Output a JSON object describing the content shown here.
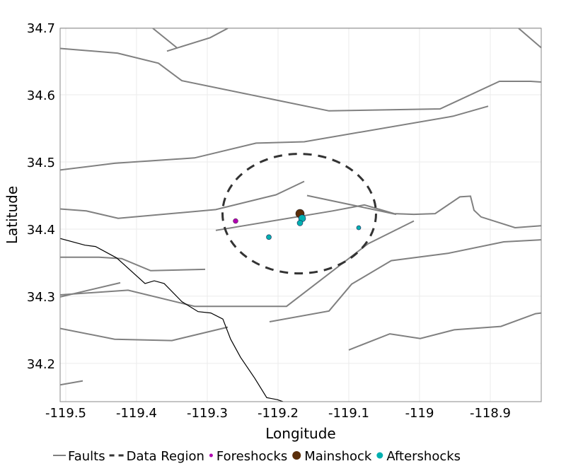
{
  "chart_data": {
    "type": "scatter",
    "title": "",
    "xlabel": "Longitude",
    "ylabel": "Latitude",
    "xlim": [
      -119.508,
      -118.828
    ],
    "ylim": [
      34.143,
      34.699
    ],
    "grid": true,
    "x_ticks": [
      -119.5,
      -119.4,
      -119.3,
      -119.2,
      -119.1,
      -119,
      -118.9
    ],
    "x_tick_labels": [
      "-119.5",
      "-119.4",
      "-119.3",
      "-119.2",
      "-119.1",
      "-119",
      "-118.9"
    ],
    "y_ticks": [
      34.2,
      34.3,
      34.4,
      34.5,
      34.6,
      34.7
    ],
    "y_tick_labels": [
      "34.2",
      "34.3",
      "34.4",
      "34.5",
      "34.6",
      "34.7"
    ],
    "legend_placement": "bottom",
    "legend": [
      {
        "label": "Faults",
        "kind": "line",
        "color": "#808080"
      },
      {
        "label": "Data Region",
        "kind": "dash",
        "color": "#333333"
      },
      {
        "label": "Foreshocks",
        "kind": "dot",
        "color": "#b000b0"
      },
      {
        "label": "Mainshock",
        "kind": "dot",
        "color": "#5a2e0a"
      },
      {
        "label": "Aftershocks",
        "kind": "dot",
        "color": "#00b0b0"
      }
    ],
    "data_region": {
      "center": [
        -119.17,
        34.423
      ],
      "radius_lon": 0.1085,
      "radius_lat": 0.089,
      "color": "#333333"
    },
    "foreshocks": {
      "color": "#b000b0",
      "points": [
        [
          -119.26,
          34.412
        ]
      ]
    },
    "mainshock": {
      "color": "#5a2e0a",
      "points": [
        [
          -119.169,
          34.423
        ]
      ]
    },
    "aftershocks": {
      "color": "#00b0b0",
      "points": [
        [
          -119.166,
          34.416
        ],
        [
          -119.169,
          34.409
        ],
        [
          -119.213,
          34.388
        ],
        [
          -119.086,
          34.402
        ]
      ]
    },
    "coastline": {
      "color": "#000000",
      "points": [
        [
          -119.508,
          34.386
        ],
        [
          -119.473,
          34.376
        ],
        [
          -119.458,
          34.374
        ],
        [
          -119.428,
          34.357
        ],
        [
          -119.388,
          34.319
        ],
        [
          -119.375,
          34.323
        ],
        [
          -119.361,
          34.319
        ],
        [
          -119.336,
          34.292
        ],
        [
          -119.313,
          34.277
        ],
        [
          -119.295,
          34.275
        ],
        [
          -119.278,
          34.266
        ],
        [
          -119.267,
          34.236
        ],
        [
          -119.253,
          34.209
        ],
        [
          -119.233,
          34.178
        ],
        [
          -119.216,
          34.149
        ],
        [
          -119.201,
          34.146
        ],
        [
          -119.193,
          34.143
        ]
      ]
    },
    "faults": {
      "color": "#808080",
      "lines": [
        [
          [
            -119.508,
            34.669
          ],
          [
            -119.427,
            34.662
          ],
          [
            -119.369,
            34.647
          ],
          [
            -119.336,
            34.621
          ],
          [
            -119.128,
            34.576
          ],
          [
            -118.971,
            34.579
          ],
          [
            -118.887,
            34.62
          ],
          [
            -118.843,
            34.62
          ],
          [
            -118.828,
            34.619
          ]
        ],
        [
          [
            -119.377,
            34.699
          ],
          [
            -119.343,
            34.67
          ]
        ],
        [
          [
            -119.357,
            34.665
          ],
          [
            -119.296,
            34.685
          ],
          [
            -119.271,
            34.699
          ]
        ],
        [
          [
            -118.86,
            34.699
          ],
          [
            -118.828,
            34.67
          ]
        ],
        [
          [
            -119.508,
            34.488
          ],
          [
            -119.431,
            34.498
          ],
          [
            -119.318,
            34.506
          ],
          [
            -119.231,
            34.528
          ],
          [
            -119.163,
            34.53
          ],
          [
            -118.953,
            34.568
          ],
          [
            -118.903,
            34.583
          ]
        ],
        [
          [
            -119.508,
            34.43
          ],
          [
            -119.471,
            34.427
          ],
          [
            -119.426,
            34.416
          ],
          [
            -119.288,
            34.429
          ],
          [
            -119.203,
            34.451
          ],
          [
            -119.163,
            34.471
          ]
        ],
        [
          [
            -119.288,
            34.398
          ],
          [
            -119.123,
            34.427
          ],
          [
            -119.078,
            34.436
          ],
          [
            -119.036,
            34.423
          ],
          [
            -119.008,
            34.422
          ],
          [
            -118.978,
            34.423
          ],
          [
            -118.943,
            34.448
          ],
          [
            -118.928,
            34.449
          ],
          [
            -118.923,
            34.428
          ],
          [
            -118.913,
            34.418
          ],
          [
            -118.865,
            34.402
          ],
          [
            -118.828,
            34.405
          ]
        ],
        [
          [
            -119.159,
            34.45
          ],
          [
            -119.033,
            34.422
          ]
        ],
        [
          [
            -119.508,
            34.358
          ],
          [
            -119.453,
            34.358
          ],
          [
            -119.421,
            34.356
          ],
          [
            -119.38,
            34.338
          ],
          [
            -119.303,
            34.34
          ]
        ],
        [
          [
            -119.508,
            34.299
          ],
          [
            -119.423,
            34.32
          ]
        ],
        [
          [
            -119.508,
            34.302
          ],
          [
            -119.412,
            34.309
          ],
          [
            -119.318,
            34.285
          ],
          [
            -119.188,
            34.285
          ],
          [
            -119.073,
            34.378
          ],
          [
            -119.008,
            34.412
          ]
        ],
        [
          [
            -119.212,
            34.262
          ],
          [
            -119.128,
            34.278
          ],
          [
            -119.096,
            34.318
          ],
          [
            -119.04,
            34.353
          ],
          [
            -118.959,
            34.364
          ],
          [
            -118.881,
            34.381
          ],
          [
            -118.828,
            34.384
          ]
        ],
        [
          [
            -119.508,
            34.252
          ],
          [
            -119.431,
            34.236
          ],
          [
            -119.35,
            34.234
          ],
          [
            -119.271,
            34.254
          ]
        ],
        [
          [
            -119.1,
            34.22
          ],
          [
            -119.042,
            34.244
          ],
          [
            -118.999,
            34.237
          ],
          [
            -118.951,
            34.25
          ],
          [
            -118.885,
            34.255
          ],
          [
            -118.836,
            34.274
          ],
          [
            -118.828,
            34.275
          ]
        ],
        [
          [
            -119.508,
            34.168
          ],
          [
            -119.476,
            34.174
          ]
        ]
      ]
    }
  }
}
